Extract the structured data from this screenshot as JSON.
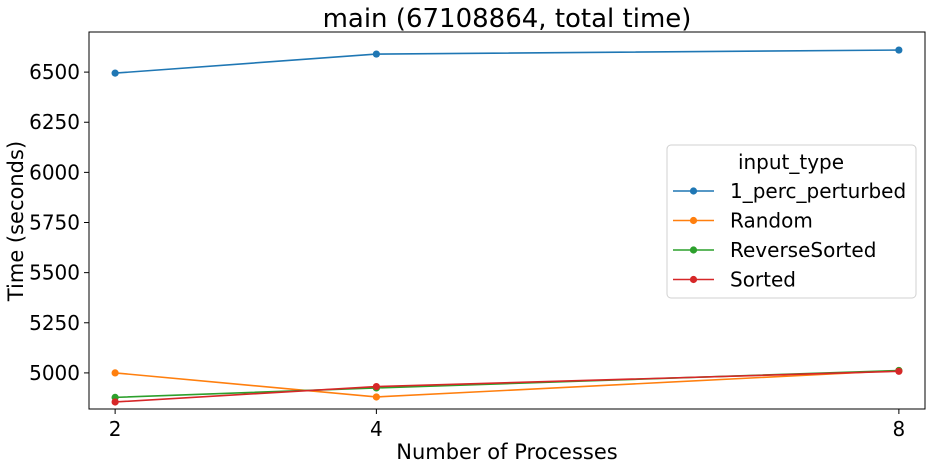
{
  "chart_data": {
    "type": "line",
    "title": "main (67108864, total time)",
    "xlabel": "Number of Processes",
    "ylabel": "Time (seconds)",
    "x_ticks": [
      "2",
      "4",
      "8"
    ],
    "y_ticks": [
      "5000",
      "5250",
      "5500",
      "5750",
      "6000",
      "6250",
      "6500"
    ],
    "ylim": [
      4820,
      6700
    ],
    "x_is_categorical_spacing": false,
    "legend": {
      "title": "input_type",
      "placement": "right"
    },
    "grid": false,
    "series": [
      {
        "name": "1_perc_perturbed",
        "color": "#1f77b4",
        "x": [
          2,
          4,
          8
        ],
        "y": [
          6495,
          6590,
          6610
        ]
      },
      {
        "name": "Random",
        "color": "#ff7f0e",
        "x": [
          2,
          4,
          8
        ],
        "y": [
          5000,
          4880,
          5012
        ]
      },
      {
        "name": "ReverseSorted",
        "color": "#2ca02c",
        "x": [
          2,
          4,
          8
        ],
        "y": [
          4878,
          4925,
          5012
        ]
      },
      {
        "name": "Sorted",
        "color": "#d62728",
        "x": [
          2,
          4,
          8
        ],
        "y": [
          4855,
          4932,
          5008
        ]
      }
    ]
  }
}
